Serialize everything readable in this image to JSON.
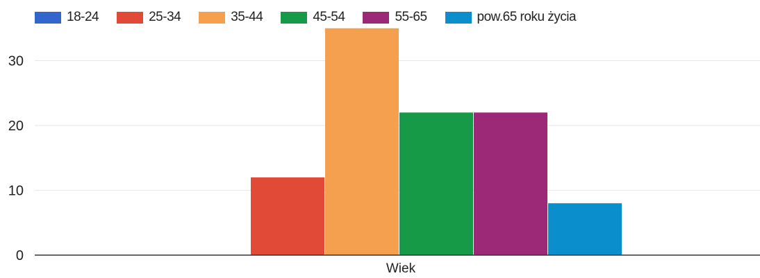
{
  "chart_data": {
    "type": "bar",
    "categories": [
      "Wiek"
    ],
    "series": [
      {
        "name": "18-24",
        "color": "#3366CC",
        "values": [
          0
        ]
      },
      {
        "name": "25-34",
        "color": "#E04A36",
        "values": [
          12
        ]
      },
      {
        "name": "35-44",
        "color": "#F4A04E",
        "values": [
          35
        ]
      },
      {
        "name": "45-54",
        "color": "#169A48",
        "values": [
          22
        ]
      },
      {
        "name": "55-65",
        "color": "#9C2978",
        "values": [
          22
        ]
      },
      {
        "name": "pow.65 roku życia",
        "color": "#0A8ECC",
        "values": [
          8
        ]
      }
    ],
    "yticks": [
      0,
      10,
      20,
      30
    ],
    "ylim": [
      0,
      35
    ],
    "grid": true,
    "legend_position": "top-left"
  }
}
